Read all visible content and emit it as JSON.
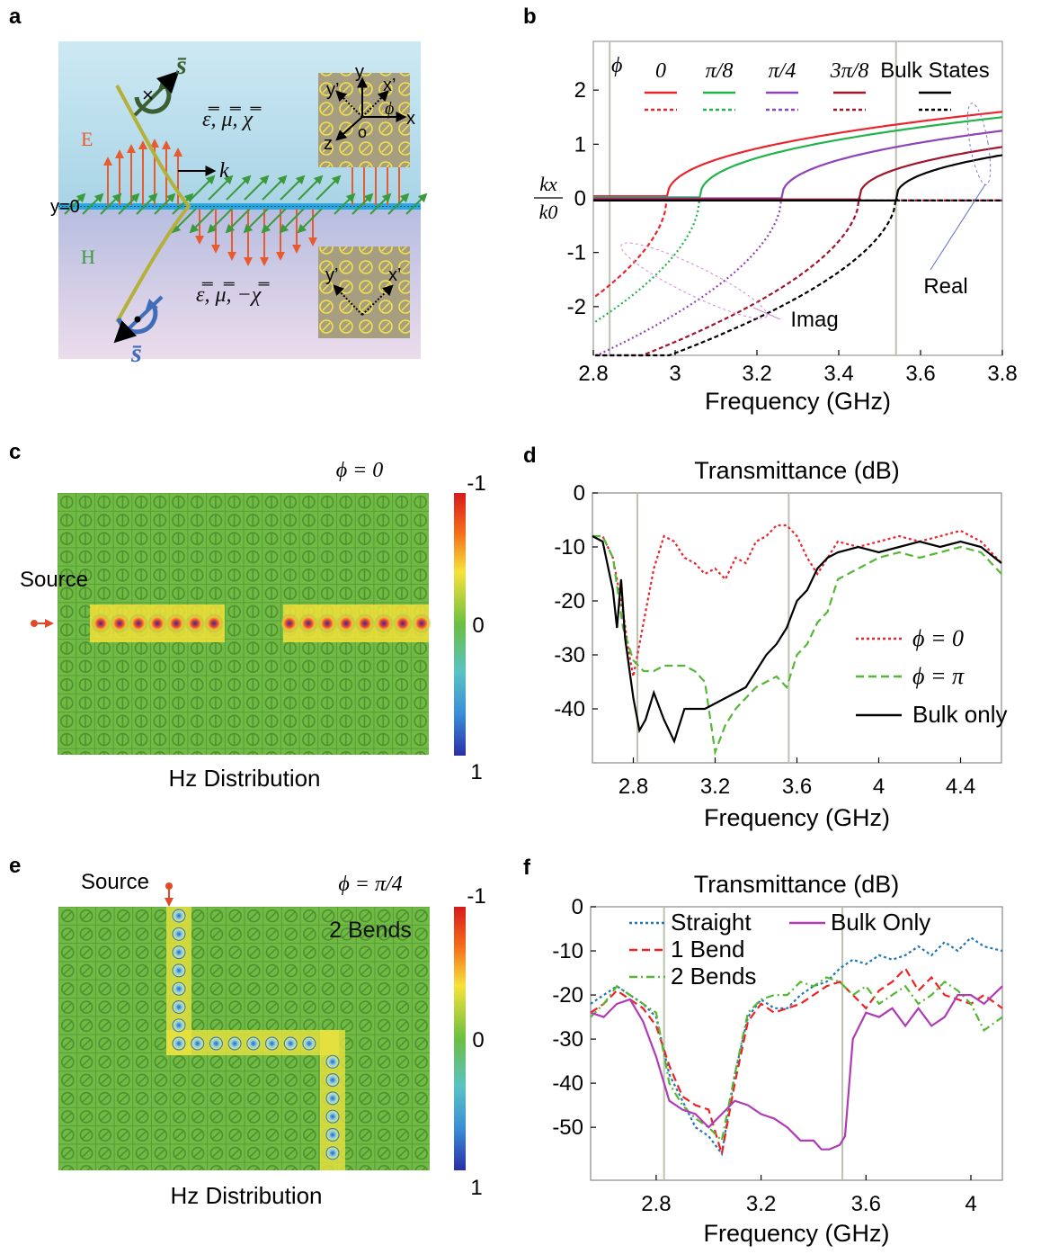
{
  "panels": {
    "a": {
      "label": "a",
      "e_label": "E",
      "h_label": "H",
      "k_label": "k",
      "y0_label": "y=0",
      "spin_label": "s̄",
      "upper_params": "ε̿, μ̿, χ̿",
      "lower_params": "ε̿, μ̿, −χ̿",
      "axes": {
        "y": "y",
        "x": "x",
        "yp": "y’",
        "xp": "x’",
        "z": "z",
        "o": "o",
        "phi": "ϕ"
      }
    },
    "b": {
      "label": "b",
      "phi_label": "ϕ",
      "legend": [
        "0",
        "π/8",
        "π/4",
        "3π/8",
        "Bulk States"
      ],
      "ylabel_num": "kx",
      "ylabel_den": "k0",
      "annot_real": "Real",
      "annot_imag": "Imag"
    },
    "c": {
      "label": "c",
      "phi_eq": "ϕ = 0",
      "source": "Source",
      "caption": "Hz Distribution",
      "colorbar": [
        "-1",
        "0",
        "1"
      ]
    },
    "d": {
      "label": "d"
    },
    "e": {
      "label": "e",
      "phi_eq": "ϕ = π/4",
      "source": "Source",
      "bends": "2 Bends",
      "caption": "Hz Distribution",
      "colorbar": [
        "-1",
        "0",
        "1"
      ]
    },
    "f": {
      "label": "f"
    }
  },
  "colors": {
    "phi0": "#e8262d",
    "phi_pi8": "#22b34b",
    "phi_pi4": "#8e44b6",
    "phi_3pi8": "#a0152c",
    "bulk": "#000000",
    "straight": "#1f78b4",
    "bend1": "#ee2222",
    "bend2": "#55b733",
    "bulk_only_f": "#b03cb5"
  },
  "chart_data": [
    {
      "id": "b",
      "type": "line",
      "title": "",
      "xlabel": "Frequency (GHz)",
      "ylabel": "kx/k0",
      "xlim": [
        2.8,
        3.8
      ],
      "ylim": [
        -2.9,
        2.9
      ],
      "xticks": [
        "2.8",
        "3",
        "3.2",
        "3.4",
        "3.6",
        "3.8"
      ],
      "yticks": [
        "2",
        "1",
        "0",
        "-1",
        "-2"
      ],
      "vlines": [
        2.84,
        3.54
      ],
      "series": [
        {
          "name": "0",
          "cutoff": 2.98,
          "real_end": 1.6,
          "imag_start": -1.95
        },
        {
          "name": "π/8",
          "cutoff": 3.06,
          "real_end": 1.5,
          "imag_start": -2.4
        },
        {
          "name": "π/4",
          "cutoff": 3.26,
          "real_end": 1.25,
          "imag_start": -3.0
        },
        {
          "name": "3π/8",
          "cutoff": 3.45,
          "real_end": 0.95,
          "imag_start": -3.3
        },
        {
          "name": "Bulk States",
          "cutoff": 3.54,
          "real_end": 0.8,
          "imag_start": -3.45
        }
      ]
    },
    {
      "id": "d",
      "type": "line",
      "title": "Transmittance (dB)",
      "xlabel": "Frequency (GHz)",
      "ylabel": "",
      "xlim": [
        2.6,
        4.6
      ],
      "ylim": [
        -50,
        0
      ],
      "xticks": [
        "2.8",
        "3.2",
        "3.6",
        "4",
        "4.4"
      ],
      "yticks": [
        "0",
        "-10",
        "-20",
        "-30",
        "-40"
      ],
      "vlines": [
        2.82,
        3.56
      ],
      "series": [
        {
          "name": "ϕ = 0",
          "style": "dotted",
          "x": [
            2.6,
            2.65,
            2.7,
            2.75,
            2.78,
            2.8,
            2.85,
            2.9,
            2.95,
            3.0,
            3.05,
            3.1,
            3.15,
            3.2,
            3.25,
            3.3,
            3.35,
            3.4,
            3.45,
            3.5,
            3.55,
            3.6,
            3.65,
            3.7,
            3.75,
            3.8,
            3.9,
            4.0,
            4.1,
            4.2,
            4.3,
            4.4,
            4.5,
            4.6
          ],
          "y": [
            -8,
            -8,
            -12,
            -22,
            -30,
            -34,
            -24,
            -14,
            -8,
            -9,
            -12,
            -13,
            -15,
            -14,
            -16,
            -12,
            -13,
            -9,
            -8,
            -6,
            -6,
            -8,
            -12,
            -15,
            -12,
            -9,
            -10,
            -9,
            -8,
            -9,
            -8,
            -7,
            -9,
            -13
          ]
        },
        {
          "name": "ϕ = π",
          "style": "dashed",
          "x": [
            2.6,
            2.65,
            2.7,
            2.75,
            2.8,
            2.85,
            2.9,
            2.95,
            3.0,
            3.05,
            3.1,
            3.15,
            3.2,
            3.25,
            3.3,
            3.35,
            3.4,
            3.45,
            3.5,
            3.55,
            3.6,
            3.65,
            3.7,
            3.75,
            3.8,
            3.9,
            4.0,
            4.1,
            4.2,
            4.3,
            4.4,
            4.5,
            4.6
          ],
          "y": [
            -8,
            -8,
            -12,
            -25,
            -31,
            -33,
            -33,
            -32,
            -32,
            -32,
            -33,
            -35,
            -48,
            -43,
            -40,
            -38,
            -36,
            -35,
            -34,
            -36,
            -30,
            -28,
            -24,
            -22,
            -16,
            -14,
            -12,
            -11,
            -12,
            -11,
            -10,
            -11,
            -15
          ]
        },
        {
          "name": "Bulk only",
          "style": "solid",
          "x": [
            2.6,
            2.65,
            2.7,
            2.72,
            2.74,
            2.76,
            2.8,
            2.83,
            2.86,
            2.9,
            2.95,
            3.0,
            3.05,
            3.1,
            3.15,
            3.2,
            3.25,
            3.3,
            3.35,
            3.4,
            3.45,
            3.5,
            3.55,
            3.6,
            3.65,
            3.7,
            3.75,
            3.8,
            3.9,
            4.0,
            4.1,
            4.2,
            4.3,
            4.4,
            4.5,
            4.6
          ],
          "y": [
            -8,
            -9,
            -18,
            -25,
            -16,
            -27,
            -38,
            -44,
            -42,
            -37,
            -42,
            -46,
            -40,
            -40,
            -40,
            -39,
            -38,
            -37,
            -36,
            -33,
            -30,
            -28,
            -25,
            -20,
            -18,
            -14,
            -12,
            -11,
            -10,
            -11,
            -10,
            -9,
            -10,
            -9,
            -10,
            -13
          ]
        }
      ]
    },
    {
      "id": "f",
      "type": "line",
      "title": "Transmittance (dB)",
      "xlabel": "Frequency (GHz)",
      "ylabel": "",
      "xlim": [
        2.55,
        4.12
      ],
      "ylim": [
        -62,
        0
      ],
      "xticks": [
        "2.8",
        "3.2",
        "3.6",
        "4"
      ],
      "yticks": [
        "0",
        "-10",
        "-20",
        "-30",
        "-40",
        "-50"
      ],
      "vlines": [
        2.83,
        3.51
      ],
      "series": [
        {
          "name": "Straight",
          "style": "dotted",
          "x": [
            2.55,
            2.6,
            2.65,
            2.7,
            2.75,
            2.8,
            2.85,
            2.9,
            2.95,
            3.0,
            3.05,
            3.1,
            3.15,
            3.2,
            3.25,
            3.3,
            3.35,
            3.4,
            3.45,
            3.5,
            3.55,
            3.6,
            3.65,
            3.7,
            3.75,
            3.8,
            3.85,
            3.9,
            3.95,
            4.0,
            4.05,
            4.12
          ],
          "y": [
            -22,
            -20,
            -18,
            -20,
            -22,
            -25,
            -38,
            -44,
            -50,
            -52,
            -56,
            -38,
            -25,
            -21,
            -23,
            -23,
            -20,
            -18,
            -17,
            -14,
            -12,
            -13,
            -11,
            -12,
            -11,
            -9,
            -11,
            -8,
            -10,
            -7,
            -9,
            -10
          ]
        },
        {
          "name": "1 Bend",
          "style": "dashed",
          "x": [
            2.55,
            2.6,
            2.65,
            2.7,
            2.75,
            2.8,
            2.85,
            2.9,
            2.95,
            3.0,
            3.05,
            3.1,
            3.15,
            3.2,
            3.25,
            3.3,
            3.35,
            3.4,
            3.45,
            3.5,
            3.55,
            3.6,
            3.65,
            3.7,
            3.75,
            3.8,
            3.85,
            3.9,
            3.95,
            4.0,
            4.05,
            4.12
          ],
          "y": [
            -24,
            -22,
            -19,
            -21,
            -23,
            -27,
            -36,
            -43,
            -45,
            -46,
            -56,
            -40,
            -26,
            -22,
            -24,
            -23,
            -22,
            -20,
            -18,
            -17,
            -20,
            -23,
            -19,
            -17,
            -14,
            -19,
            -16,
            -20,
            -21,
            -22,
            -20,
            -23
          ]
        },
        {
          "name": "2 Bends",
          "style": "dashdot",
          "x": [
            2.55,
            2.6,
            2.65,
            2.7,
            2.75,
            2.8,
            2.85,
            2.9,
            2.95,
            3.0,
            3.05,
            3.1,
            3.15,
            3.2,
            3.25,
            3.3,
            3.35,
            3.4,
            3.45,
            3.5,
            3.55,
            3.6,
            3.65,
            3.7,
            3.75,
            3.8,
            3.85,
            3.9,
            3.95,
            4.0,
            4.05,
            4.12
          ],
          "y": [
            -25,
            -22,
            -18,
            -20,
            -22,
            -24,
            -40,
            -45,
            -48,
            -50,
            -53,
            -38,
            -24,
            -21,
            -20,
            -20,
            -17,
            -18,
            -16,
            -17,
            -20,
            -18,
            -22,
            -20,
            -18,
            -22,
            -20,
            -17,
            -19,
            -22,
            -28,
            -25
          ]
        },
        {
          "name": "Bulk Only",
          "style": "solid",
          "x": [
            2.55,
            2.6,
            2.65,
            2.7,
            2.75,
            2.8,
            2.85,
            2.9,
            2.95,
            3.0,
            3.05,
            3.1,
            3.15,
            3.2,
            3.25,
            3.3,
            3.35,
            3.4,
            3.43,
            3.46,
            3.5,
            3.52,
            3.55,
            3.6,
            3.65,
            3.7,
            3.75,
            3.8,
            3.85,
            3.9,
            3.95,
            4.0,
            4.05,
            4.12
          ],
          "y": [
            -24,
            -25,
            -22,
            -21,
            -26,
            -34,
            -44,
            -46,
            -47,
            -50,
            -47,
            -44,
            -45,
            -47,
            -48,
            -50,
            -53,
            -53,
            -55,
            -55,
            -54,
            -52,
            -30,
            -24,
            -25,
            -23,
            -27,
            -23,
            -27,
            -25,
            -20,
            -20,
            -22,
            -18
          ]
        }
      ]
    }
  ]
}
